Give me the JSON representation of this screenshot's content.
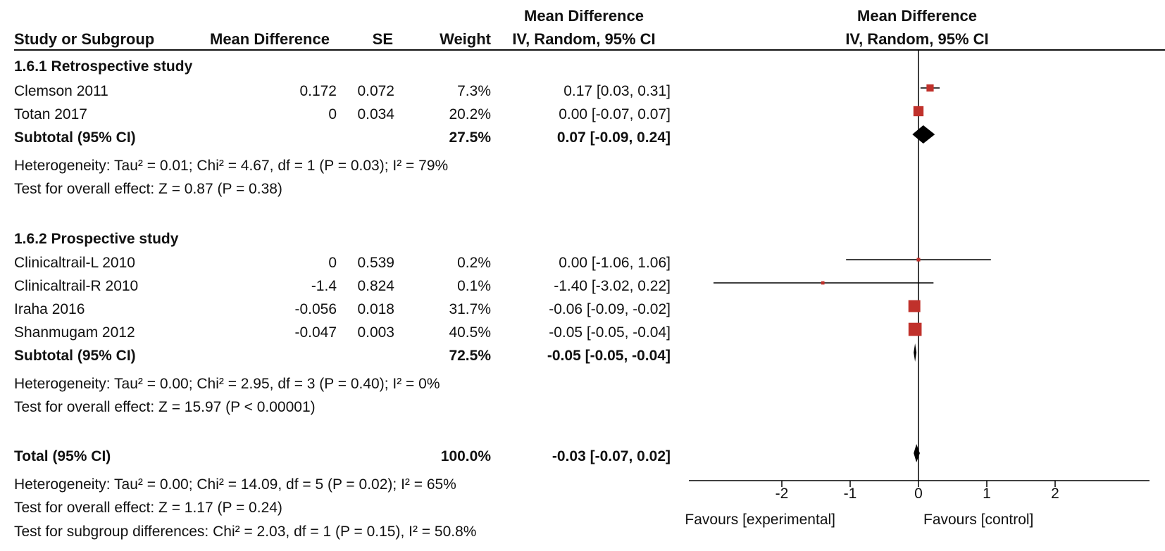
{
  "header": {
    "study_col": "Study or Subgroup",
    "md_col": "Mean Difference",
    "se_col": "SE",
    "weight_col": "Weight",
    "ci_col_line1": "Mean Difference",
    "ci_col_line2": "IV, Random, 95% CI",
    "plot_col_line1": "Mean Difference",
    "plot_col_line2": "IV, Random, 95% CI"
  },
  "subgroups": [
    {
      "title": "1.6.1 Retrospective study",
      "studies": [
        {
          "name": "Clemson 2011",
          "md": "0.172",
          "se": "0.072",
          "weight": "7.3%",
          "ci_text": "0.17 [0.03, 0.31]"
        },
        {
          "name": "Totan 2017",
          "md": "0",
          "se": "0.034",
          "weight": "20.2%",
          "ci_text": "0.00 [-0.07, 0.07]"
        }
      ],
      "subtotal": {
        "label": "Subtotal (95% CI)",
        "weight": "27.5%",
        "ci_text": "0.07 [-0.09, 0.24]"
      },
      "heterogeneity": "Heterogeneity: Tau² = 0.01; Chi² = 4.67, df = 1 (P = 0.03); I² = 79%",
      "overall": "Test for overall effect: Z = 0.87 (P = 0.38)"
    },
    {
      "title": "1.6.2 Prospective study",
      "studies": [
        {
          "name": "Clinicaltrail-L 2010",
          "md": "0",
          "se": "0.539",
          "weight": "0.2%",
          "ci_text": "0.00 [-1.06, 1.06]"
        },
        {
          "name": "Clinicaltrail-R 2010",
          "md": "-1.4",
          "se": "0.824",
          "weight": "0.1%",
          "ci_text": "-1.40 [-3.02, 0.22]"
        },
        {
          "name": "Iraha 2016",
          "md": "-0.056",
          "se": "0.018",
          "weight": "31.7%",
          "ci_text": "-0.06 [-0.09, -0.02]"
        },
        {
          "name": "Shanmugam 2012",
          "md": "-0.047",
          "se": "0.003",
          "weight": "40.5%",
          "ci_text": "-0.05 [-0.05, -0.04]"
        }
      ],
      "subtotal": {
        "label": "Subtotal (95% CI)",
        "weight": "72.5%",
        "ci_text": "-0.05 [-0.05, -0.04]"
      },
      "heterogeneity": "Heterogeneity: Tau² = 0.00; Chi² = 2.95, df = 3 (P = 0.40); I² = 0%",
      "overall": "Test for overall effect: Z = 15.97 (P < 0.00001)"
    }
  ],
  "total": {
    "label": "Total (95% CI)",
    "weight": "100.0%",
    "ci_text": "-0.03 [-0.07, 0.02]",
    "heterogeneity": "Heterogeneity: Tau² = 0.00; Chi² = 14.09, df = 5 (P = 0.02); I² = 65%",
    "overall": "Test for overall effect: Z = 1.17 (P = 0.24)",
    "subgroup_diff": "Test for subgroup differences: Chi² = 2.03, df = 1 (P = 0.15), I² = 50.8%"
  },
  "axis": {
    "ticks": [
      -2,
      -1,
      0,
      1,
      2
    ],
    "tick_labels": [
      "-2",
      "-1",
      "0",
      "1",
      "2"
    ],
    "favours_left": "Favours [experimental]",
    "favours_right": "Favours [control]"
  },
  "colors": {
    "study_marker": "#c0312b",
    "diamond": "#000000",
    "line": "#000000"
  },
  "chart_data": {
    "type": "forest",
    "xlim": [
      -3.0,
      3.0
    ],
    "studies": [
      {
        "name": "Clemson 2011",
        "subgroup": "1.6.1 Retrospective study",
        "md": 0.17,
        "lo": 0.03,
        "hi": 0.31,
        "weight": 7.3
      },
      {
        "name": "Totan 2017",
        "subgroup": "1.6.1 Retrospective study",
        "md": 0.0,
        "lo": -0.07,
        "hi": 0.07,
        "weight": 20.2
      },
      {
        "name": "Clinicaltrail-L 2010",
        "subgroup": "1.6.2 Prospective study",
        "md": 0.0,
        "lo": -1.06,
        "hi": 1.06,
        "weight": 0.2
      },
      {
        "name": "Clinicaltrail-R 2010",
        "subgroup": "1.6.2 Prospective study",
        "md": -1.4,
        "lo": -3.02,
        "hi": 0.22,
        "weight": 0.1
      },
      {
        "name": "Iraha 2016",
        "subgroup": "1.6.2 Prospective study",
        "md": -0.06,
        "lo": -0.09,
        "hi": -0.02,
        "weight": 31.7
      },
      {
        "name": "Shanmugam 2012",
        "subgroup": "1.6.2 Prospective study",
        "md": -0.05,
        "lo": -0.05,
        "hi": -0.04,
        "weight": 40.5
      }
    ],
    "summaries": [
      {
        "name": "Subtotal (95% CI)",
        "subgroup": "1.6.1 Retrospective study",
        "md": 0.07,
        "lo": -0.09,
        "hi": 0.24
      },
      {
        "name": "Subtotal (95% CI)",
        "subgroup": "1.6.2 Prospective study",
        "md": -0.05,
        "lo": -0.05,
        "hi": -0.04
      },
      {
        "name": "Total (95% CI)",
        "md": -0.03,
        "lo": -0.07,
        "hi": 0.02
      }
    ]
  }
}
